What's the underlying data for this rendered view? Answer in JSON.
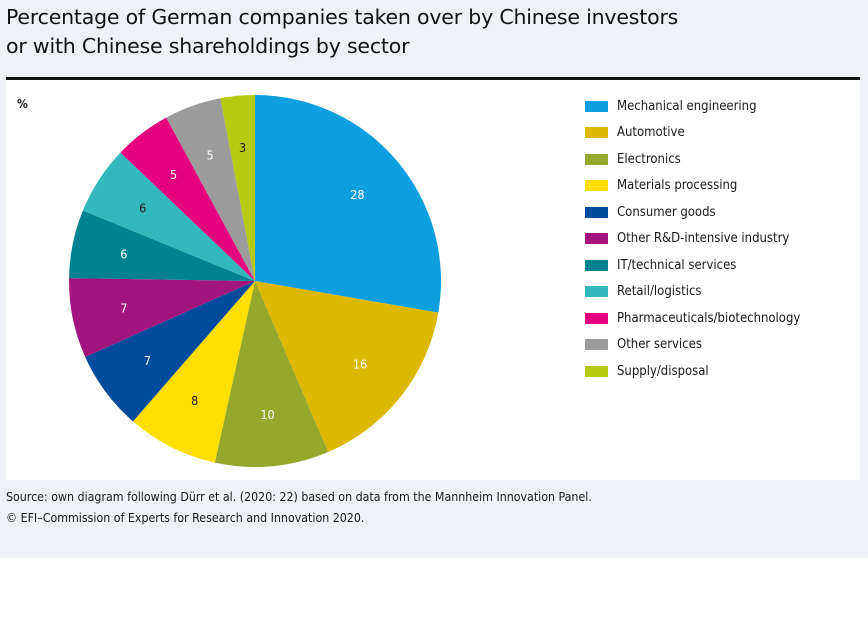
{
  "title_lines": [
    "Percentage of German companies taken over by Chinese investors",
    "or with Chinese shareholdings by sector"
  ],
  "unit_label": "%",
  "chart_data": {
    "type": "pie",
    "title": "Percentage of German companies taken over by Chinese investors or with Chinese shareholdings by sector",
    "unit": "%",
    "legend_position": "right",
    "slices": [
      {
        "label": "Mechanical engineering",
        "value": 28,
        "color": "#0d9fdf",
        "label_color": "#ffffff"
      },
      {
        "label": "Automotive",
        "value": 16,
        "color": "#dcb800",
        "label_color": "#ffffff"
      },
      {
        "label": "Electronics",
        "value": 10,
        "color": "#95a82b",
        "label_color": "#ffffff"
      },
      {
        "label": "Materials processing",
        "value": 8,
        "color": "#ffde00",
        "label_color": "#1a1a1a"
      },
      {
        "label": "Consumer goods",
        "value": 7,
        "color": "#004b9c",
        "label_color": "#ffffff"
      },
      {
        "label": "Other R&D-intensive industry",
        "value": 7,
        "color": "#a3157e",
        "label_color": "#ffffff"
      },
      {
        "label": "IT/technical services",
        "value": 6,
        "color": "#00838f",
        "label_color": "#ffffff"
      },
      {
        "label": "Retail/logistics",
        "value": 6,
        "color": "#33b8bc",
        "label_color": "#1a1a1a"
      },
      {
        "label": "Pharmaceuticals/biotechnology",
        "value": 5,
        "color": "#e5007e",
        "label_color": "#ffffff"
      },
      {
        "label": "Other services",
        "value": 5,
        "color": "#9c9c9c",
        "label_color": "#ffffff"
      },
      {
        "label": "Supply/disposal",
        "value": 3,
        "color": "#b5cb12",
        "label_color": "#1a1a1a"
      }
    ]
  },
  "source_lines": [
    "Source: own diagram following Dürr et al. (2020: 22) based on data from the Mannheim Innovation Panel.",
    "© EFI–Commission of Experts for Research and Innovation 2020."
  ]
}
